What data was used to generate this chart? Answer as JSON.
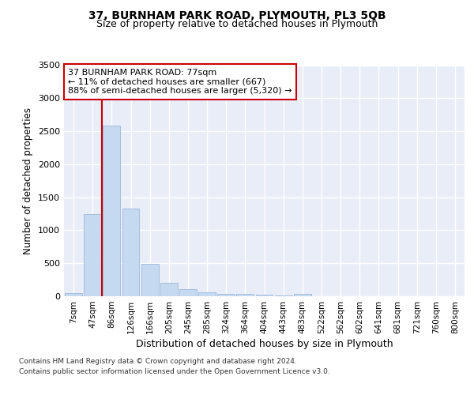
{
  "title": "37, BURNHAM PARK ROAD, PLYMOUTH, PL3 5QB",
  "subtitle": "Size of property relative to detached houses in Plymouth",
  "xlabel": "Distribution of detached houses by size in Plymouth",
  "ylabel": "Number of detached properties",
  "categories": [
    "7sqm",
    "47sqm",
    "86sqm",
    "126sqm",
    "166sqm",
    "205sqm",
    "245sqm",
    "285sqm",
    "324sqm",
    "364sqm",
    "404sqm",
    "443sqm",
    "483sqm",
    "522sqm",
    "562sqm",
    "602sqm",
    "641sqm",
    "681sqm",
    "721sqm",
    "760sqm",
    "800sqm"
  ],
  "values": [
    50,
    1250,
    2580,
    1330,
    490,
    200,
    110,
    55,
    40,
    30,
    20,
    10,
    30,
    5,
    3,
    2,
    2,
    1,
    1,
    1,
    1
  ],
  "bar_color": "#c5d9f1",
  "bar_edgecolor": "#8fb0d4",
  "vline_color": "#cc0000",
  "vline_x_index": 1.5,
  "annotation_text": "37 BURNHAM PARK ROAD: 77sqm\n← 11% of detached houses are smaller (667)\n88% of semi-detached houses are larger (5,320) →",
  "annotation_box_facecolor": "#ffffff",
  "annotation_box_edgecolor": "#cc0000",
  "ylim_max": 3500,
  "yticks": [
    0,
    500,
    1000,
    1500,
    2000,
    2500,
    3000,
    3500
  ],
  "plot_bg": "#e8edf8",
  "grid_color": "#ffffff",
  "title_fontsize": 10,
  "subtitle_fontsize": 9,
  "footer_line1": "Contains HM Land Registry data © Crown copyright and database right 2024.",
  "footer_line2": "Contains public sector information licensed under the Open Government Licence v3.0."
}
